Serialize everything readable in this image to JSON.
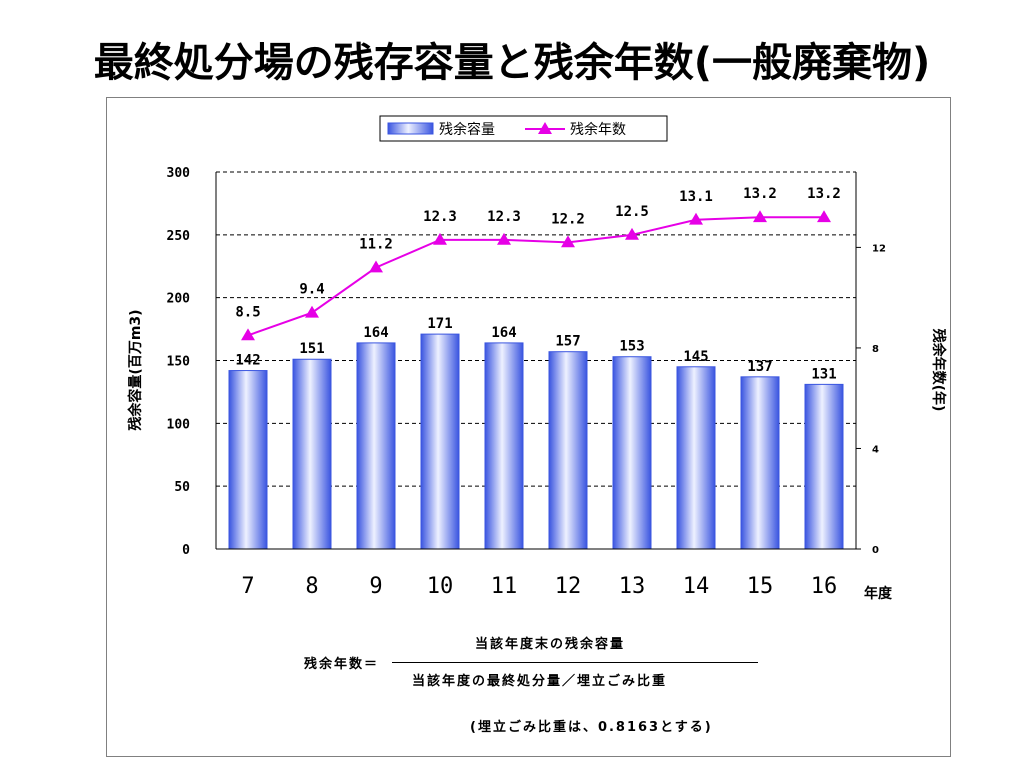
{
  "title": "最終処分場の残存容量と残余年数(一般廃棄物)",
  "chart_data": {
    "type": "bar",
    "categories": [
      "7",
      "8",
      "9",
      "10",
      "11",
      "12",
      "13",
      "14",
      "15",
      "16"
    ],
    "xlabel_unit": "年度",
    "ylabel_left": "残余容量(百万m3)",
    "ylabel_right": "残余年数(年)",
    "ylim_left": [
      0,
      300
    ],
    "yticks_left": [
      0,
      50,
      100,
      150,
      200,
      250,
      300
    ],
    "ylim_right": [
      0,
      15
    ],
    "yticks_right": [
      0,
      4,
      8,
      12
    ],
    "grid": true,
    "legend_position": "top-center",
    "series": [
      {
        "name": "残余容量",
        "kind": "bar",
        "axis": "left",
        "values": [
          142,
          151,
          164,
          171,
          164,
          157,
          153,
          145,
          137,
          131
        ],
        "labels": [
          "142",
          "151",
          "164",
          "171",
          "164",
          "157",
          "153",
          "145",
          "137",
          "131"
        ],
        "color": "#3a55e0"
      },
      {
        "name": "残余年数",
        "kind": "line",
        "axis": "right",
        "values": [
          8.5,
          9.4,
          11.2,
          12.3,
          12.3,
          12.2,
          12.5,
          13.1,
          13.2,
          13.2
        ],
        "labels": [
          "8.5",
          "9.4",
          "11.2",
          "12.3",
          "12.3",
          "12.2",
          "12.5",
          "13.1",
          "13.2",
          "13.2"
        ],
        "color": "#e600e6"
      }
    ]
  },
  "formula": {
    "lhs": "残余年数＝",
    "numerator": "当該年度末の残余容量",
    "denominator": "当該年度の最終処分量／埋立ごみ比重"
  },
  "note": "(埋立ごみ比重は、0.8163とする)"
}
